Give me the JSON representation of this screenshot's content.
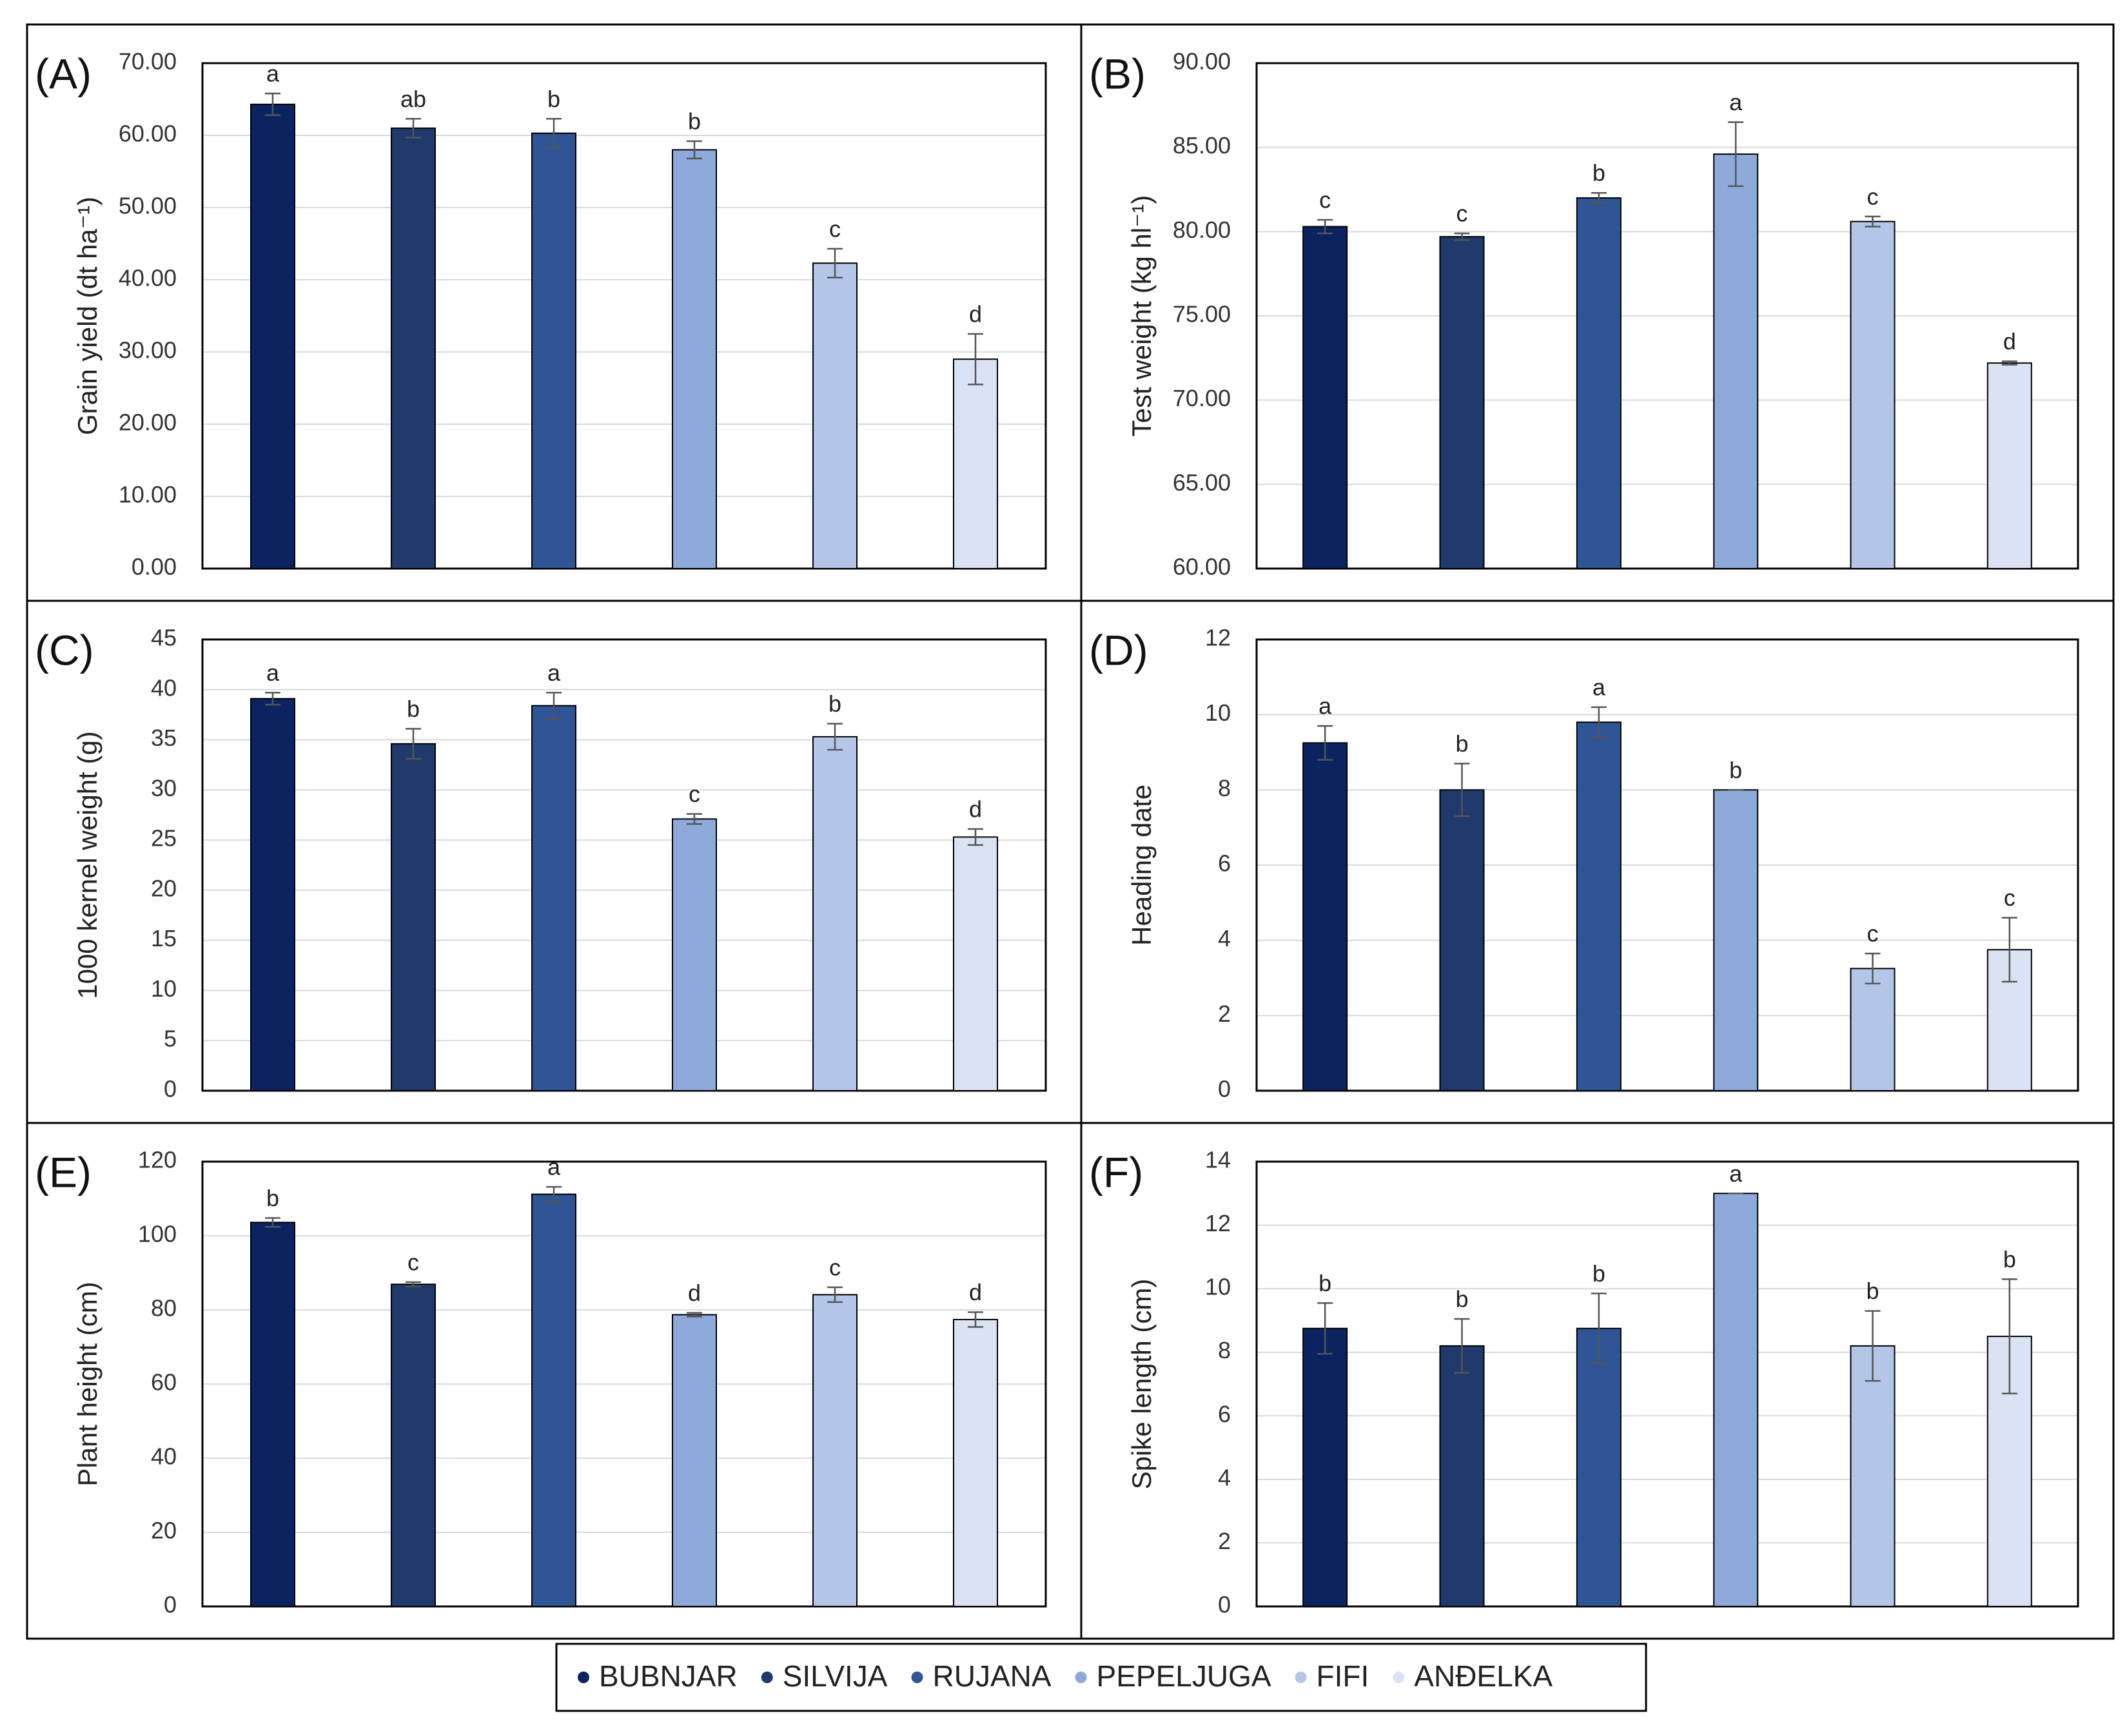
{
  "legend": {
    "names": [
      "BUBNJAR",
      "SILVIJA",
      "RUJANA",
      "PEPELJUGA",
      "FIFI",
      "ANĐELKA"
    ],
    "colors": [
      "#0b2461",
      "#1f3a6b",
      "#2f5597",
      "#8eaadb",
      "#b4c6e7",
      "#dae3f3"
    ]
  },
  "chart_data": [
    {
      "type": "bar",
      "panel": "(A)",
      "ylabel": "Grain yield (dt ha⁻¹)",
      "values": [
        64.3,
        61.0,
        60.3,
        58.0,
        42.3,
        29.0
      ],
      "errors": [
        1.5,
        1.3,
        2.0,
        1.2,
        2.0,
        3.5
      ],
      "letters": [
        "a",
        "ab",
        "b",
        "b",
        "c",
        "d"
      ],
      "ylim": [
        0,
        70
      ],
      "yticks": [
        {
          "value": 0,
          "label": "0.00"
        },
        {
          "value": 10,
          "label": "10.00"
        },
        {
          "value": 20,
          "label": "20.00"
        },
        {
          "value": 30,
          "label": "30.00"
        },
        {
          "value": 40,
          "label": "40.00"
        },
        {
          "value": 50,
          "label": "50.00"
        },
        {
          "value": 60,
          "label": "60.00"
        },
        {
          "value": 70,
          "label": "70.00"
        }
      ],
      "grid": true
    },
    {
      "type": "bar",
      "panel": "(B)",
      "ylabel": "Test weight (kg hl⁻¹)",
      "values": [
        80.3,
        79.7,
        82.0,
        84.6,
        80.6,
        72.2
      ],
      "errors": [
        0.4,
        0.2,
        0.3,
        1.9,
        0.3,
        0.1
      ],
      "letters": [
        "c",
        "c",
        "b",
        "a",
        "c",
        "d"
      ],
      "ylim": [
        60,
        90
      ],
      "yticks": [
        {
          "value": 60,
          "label": "60.00"
        },
        {
          "value": 65,
          "label": "65.00"
        },
        {
          "value": 70,
          "label": "70.00"
        },
        {
          "value": 75,
          "label": "75.00"
        },
        {
          "value": 80,
          "label": "80.00"
        },
        {
          "value": 85,
          "label": "85.00"
        },
        {
          "value": 90,
          "label": "90.00"
        }
      ],
      "grid": true
    },
    {
      "type": "bar",
      "panel": "(C)",
      "ylabel": "1000 kernel  weight (g)",
      "values": [
        39.1,
        34.6,
        38.4,
        27.1,
        35.3,
        25.3
      ],
      "errors": [
        0.6,
        1.5,
        1.3,
        0.5,
        1.3,
        0.8
      ],
      "letters": [
        "a",
        "b",
        "a",
        "c",
        "b",
        "d"
      ],
      "ylim": [
        0,
        45
      ],
      "yticks": [
        0,
        5,
        10,
        15,
        20,
        25,
        30,
        35,
        40,
        45
      ],
      "grid": true
    },
    {
      "type": "bar",
      "panel": "(D)",
      "ylabel": "Heading date",
      "values": [
        9.25,
        8.0,
        9.8,
        8.0,
        3.25,
        3.75
      ],
      "errors": [
        0.45,
        0.7,
        0.4,
        0,
        0.4,
        0.85
      ],
      "letters": [
        "a",
        "b",
        "a",
        "b",
        "c",
        "c"
      ],
      "ylim": [
        0,
        12
      ],
      "yticks": [
        0,
        2,
        4,
        6,
        8,
        10,
        12
      ],
      "grid": true
    },
    {
      "type": "bar",
      "panel": "(E)",
      "ylabel": "Plant height (cm)",
      "values": [
        103.6,
        86.9,
        111.2,
        78.7,
        84.1,
        77.4
      ],
      "errors": [
        1.2,
        0.6,
        2.0,
        0.5,
        2.0,
        2.0
      ],
      "letters": [
        "b",
        "c",
        "a",
        "d",
        "c",
        "d"
      ],
      "ylim": [
        0,
        120
      ],
      "yticks": [
        0,
        20,
        40,
        60,
        80,
        100,
        120
      ],
      "grid": true
    },
    {
      "type": "bar",
      "panel": "(F)",
      "ylabel": "Spike length (cm)",
      "values": [
        8.75,
        8.2,
        8.75,
        13.0,
        8.2,
        8.5
      ],
      "errors": [
        0.8,
        0.85,
        1.1,
        0,
        1.1,
        1.8
      ],
      "letters": [
        "b",
        "b",
        "b",
        "a",
        "b",
        "b"
      ],
      "ylim": [
        0,
        14
      ],
      "yticks": [
        0,
        2,
        4,
        6,
        8,
        10,
        12,
        14
      ],
      "grid": true
    }
  ]
}
